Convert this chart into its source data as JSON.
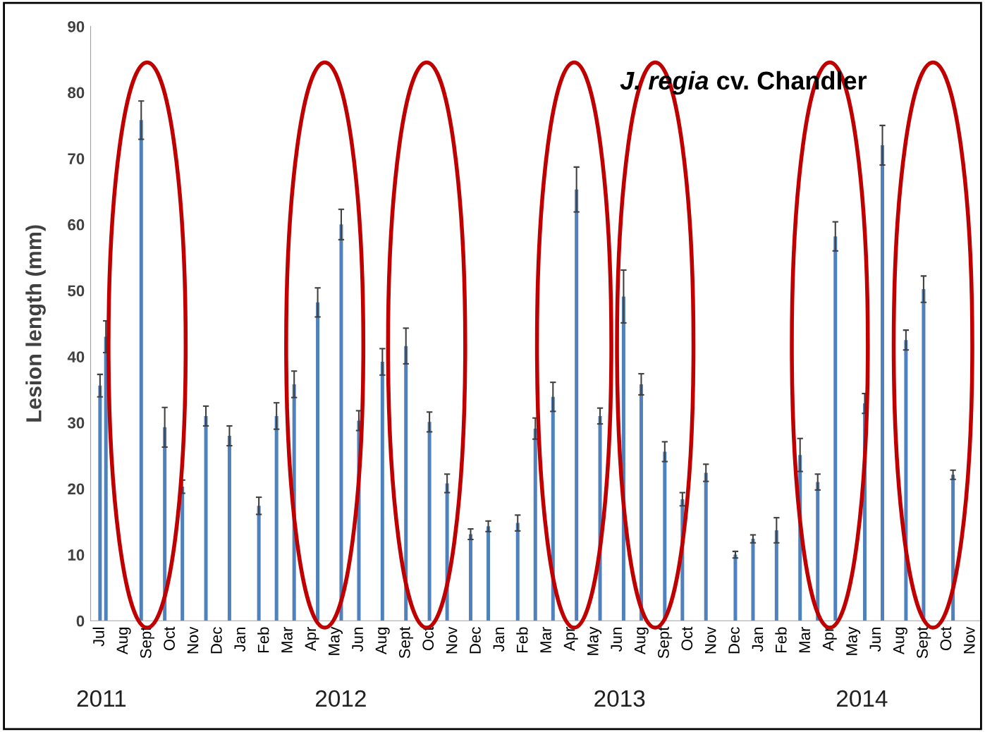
{
  "chart_data": {
    "type": "bar",
    "title": "J. regia cv. Chandler",
    "ylabel": "Lesion length (mm)",
    "categories": [
      "Jul",
      null,
      null,
      null,
      "Aug",
      null,
      null,
      null,
      "Sept",
      null,
      null,
      null,
      "Oct",
      null,
      null,
      null,
      "Nov",
      null,
      null,
      null,
      "Dec",
      null,
      null,
      null,
      "Jan",
      null,
      null,
      null,
      "Feb",
      null,
      null,
      null,
      "Mar",
      null,
      null,
      null,
      "Apr",
      null,
      null,
      null,
      "May",
      null,
      null,
      null,
      "Jun",
      null,
      null,
      null,
      "Aug",
      null,
      null,
      null,
      "Sept",
      null,
      null,
      null,
      "Oct",
      null,
      null,
      null,
      "Nov",
      null,
      null,
      null,
      "Dec",
      null,
      null,
      null,
      "Jan",
      null,
      null,
      null,
      "Feb",
      null,
      null,
      null,
      "Mar",
      null,
      null,
      null,
      "Apr",
      null,
      null,
      null,
      "May",
      null,
      null,
      null,
      "Jun",
      null,
      null,
      null,
      "Aug",
      null,
      null,
      null,
      "Sept",
      null,
      null,
      null,
      "Oct",
      null,
      null,
      null,
      "Nov",
      null,
      null,
      null,
      "Dec",
      null,
      null,
      null,
      "Jan",
      null,
      null,
      null,
      "Feb",
      null,
      null,
      null,
      "Mar",
      null,
      null,
      null,
      "Apr",
      null,
      null,
      null,
      "May",
      null,
      null,
      null,
      "Jun",
      null,
      null,
      null,
      "Aug",
      null,
      null,
      null,
      "Sept",
      null,
      null,
      null,
      "Oct",
      null,
      null,
      null,
      "Nov",
      null
    ],
    "values": [
      35.6,
      43,
      null,
      null,
      null,
      null,
      null,
      75.8,
      null,
      null,
      null,
      29.3,
      null,
      null,
      20.3,
      null,
      null,
      null,
      31,
      null,
      null,
      null,
      28,
      null,
      null,
      null,
      null,
      17.4,
      null,
      null,
      31,
      null,
      null,
      35.8,
      null,
      null,
      null,
      48.2,
      null,
      null,
      null,
      60,
      null,
      null,
      30.3,
      null,
      null,
      null,
      39.2,
      null,
      null,
      null,
      41.6,
      null,
      null,
      null,
      30.1,
      null,
      null,
      20.8,
      null,
      null,
      null,
      13.1,
      null,
      null,
      14.3,
      null,
      null,
      null,
      null,
      14.8,
      null,
      null,
      29.1,
      null,
      null,
      33.9,
      null,
      null,
      null,
      65.3,
      null,
      null,
      null,
      31,
      null,
      null,
      null,
      49.1,
      null,
      null,
      35.8,
      null,
      null,
      null,
      25.6,
      null,
      null,
      18.4,
      null,
      null,
      null,
      22.4,
      null,
      null,
      null,
      null,
      10,
      null,
      null,
      12.4,
      null,
      null,
      null,
      13.7,
      null,
      null,
      null,
      25.1,
      null,
      null,
      21,
      null,
      null,
      58.2,
      null,
      null,
      null,
      null,
      32.9,
      null,
      null,
      72,
      null,
      null,
      null,
      42.5,
      null,
      null,
      50.2,
      null,
      null,
      null,
      null,
      22.1,
      null,
      null,
      null,
      null
    ],
    "errors": [
      1.7,
      2.4,
      null,
      null,
      null,
      null,
      null,
      2.9,
      null,
      null,
      null,
      3,
      null,
      null,
      1,
      null,
      null,
      null,
      1.5,
      null,
      null,
      null,
      1.5,
      null,
      null,
      null,
      null,
      1.3,
      null,
      null,
      2,
      null,
      null,
      2,
      null,
      null,
      null,
      2.2,
      null,
      null,
      null,
      2.3,
      null,
      null,
      1.5,
      null,
      null,
      null,
      2,
      null,
      null,
      null,
      2.7,
      null,
      null,
      null,
      1.5,
      null,
      null,
      1.4,
      null,
      null,
      null,
      0.8,
      null,
      null,
      0.8,
      null,
      null,
      null,
      null,
      1.2,
      null,
      null,
      1.6,
      null,
      null,
      2.2,
      null,
      null,
      null,
      3.4,
      null,
      null,
      null,
      1.2,
      null,
      null,
      null,
      4,
      null,
      null,
      1.6,
      null,
      null,
      null,
      1.5,
      null,
      null,
      1,
      null,
      null,
      null,
      1.3,
      null,
      null,
      null,
      null,
      0.5,
      null,
      null,
      0.6,
      null,
      null,
      null,
      1.9,
      null,
      null,
      null,
      2.5,
      null,
      null,
      1.2,
      null,
      null,
      2.2,
      null,
      null,
      null,
      null,
      1.5,
      null,
      null,
      3,
      null,
      null,
      null,
      1.5,
      null,
      null,
      2,
      null,
      null,
      null,
      null,
      0.7,
      null,
      null,
      null,
      null
    ],
    "color": "#4f81bd",
    "ylim": [
      0,
      90
    ],
    "yticks": [
      0,
      10,
      20,
      30,
      40,
      50,
      60,
      70,
      80,
      90
    ],
    "annotations": [
      "2011",
      "2012",
      "2013",
      "2014"
    ],
    "grid": false,
    "legend": false
  }
}
